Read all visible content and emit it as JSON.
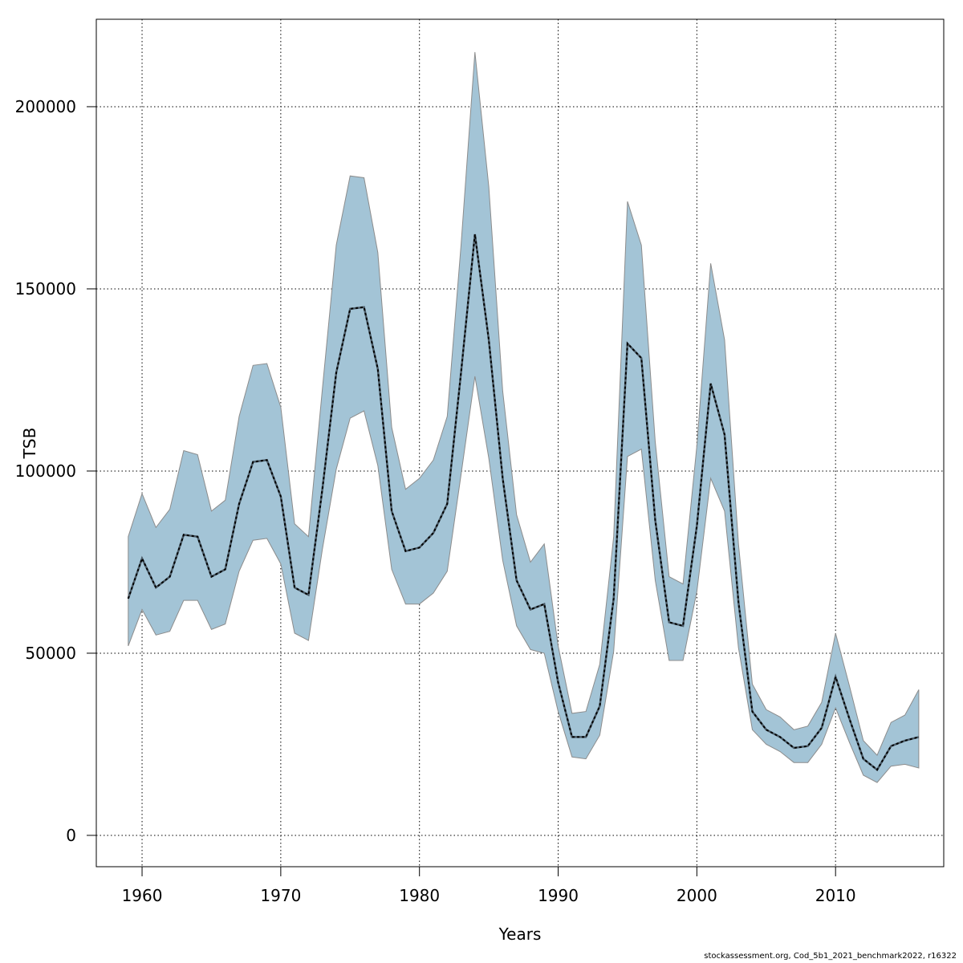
{
  "chart_data": {
    "type": "area",
    "xlabel": "Years",
    "ylabel": "TSB",
    "xlim": [
      1956.7,
      2017.8
    ],
    "ylim": [
      -8600,
      224000
    ],
    "xticks": [
      1960,
      1970,
      1980,
      1990,
      2000,
      2010
    ],
    "yticks": [
      0,
      50000,
      100000,
      150000,
      200000
    ],
    "grid": true,
    "colors": {
      "band": "#a3c4d6",
      "band_outline": "#8c8c8c",
      "estimate_line": "#000000",
      "gray_band": "#a6a6a6"
    },
    "x": [
      1959,
      1960,
      1961,
      1962,
      1963,
      1964,
      1965,
      1966,
      1967,
      1968,
      1969,
      1970,
      1971,
      1972,
      1973,
      1974,
      1975,
      1976,
      1977,
      1978,
      1979,
      1980,
      1981,
      1982,
      1983,
      1984,
      1985,
      1986,
      1987,
      1988,
      1989,
      1990,
      1991,
      1992,
      1993,
      1994,
      1995,
      1996,
      1997,
      1998,
      1999,
      2000,
      2001,
      2002,
      2003,
      2004,
      2005,
      2006,
      2007,
      2008,
      2009,
      2010,
      2011,
      2012,
      2013,
      2014,
      2015,
      2016
    ],
    "series": [
      {
        "type": "band",
        "upper": [
          82000,
          93800,
          84500,
          89500,
          105600,
          104500,
          89000,
          92000,
          115000,
          129000,
          129500,
          117500,
          85500,
          82000,
          122500,
          162000,
          181000,
          180500,
          160000,
          112000,
          95000,
          98000,
          103000,
          115000,
          162000,
          215000,
          178000,
          122000,
          88000,
          75000,
          80000,
          52000,
          33500,
          34000,
          47000,
          82000,
          174000,
          162000,
          108000,
          71000,
          69000,
          107000,
          157000,
          136000,
          80000,
          41500,
          34500,
          32500,
          29000,
          30000,
          36500,
          55500,
          41000,
          26000,
          22000,
          31000,
          33000,
          40000
        ],
        "estimate": [
          65000,
          76000,
          68000,
          71000,
          82500,
          82000,
          71000,
          73000,
          91000,
          102500,
          103000,
          93000,
          68000,
          66000,
          95000,
          127000,
          144500,
          145000,
          128000,
          89000,
          78000,
          79000,
          83000,
          91000,
          127000,
          165000,
          136000,
          98000,
          70000,
          62000,
          63500,
          42000,
          27000,
          27000,
          35500,
          65000,
          135000,
          131000,
          86500,
          58500,
          57500,
          85000,
          124000,
          110000,
          64000,
          34000,
          29000,
          27000,
          24000,
          24500,
          29500,
          43500,
          32000,
          21000,
          18000,
          24500,
          26000,
          27000
        ],
        "lower": [
          52000,
          62000,
          55000,
          56000,
          64500,
          64500,
          56500,
          58000,
          72500,
          81000,
          81500,
          74500,
          55500,
          53500,
          78500,
          100500,
          114500,
          116500,
          101500,
          73000,
          63500,
          63500,
          66500,
          72500,
          99000,
          126000,
          103500,
          75500,
          57500,
          51000,
          50000,
          34000,
          21500,
          21000,
          27500,
          50500,
          104000,
          106000,
          70000,
          48000,
          48000,
          67000,
          98000,
          89000,
          51500,
          29000,
          25000,
          23000,
          20000,
          20000,
          25000,
          35000,
          25500,
          16500,
          14500,
          19000,
          19500,
          18500
        ]
      }
    ],
    "footer": "stockassessment.org, Cod_5b1_2021_benchmark2022, r16322"
  }
}
